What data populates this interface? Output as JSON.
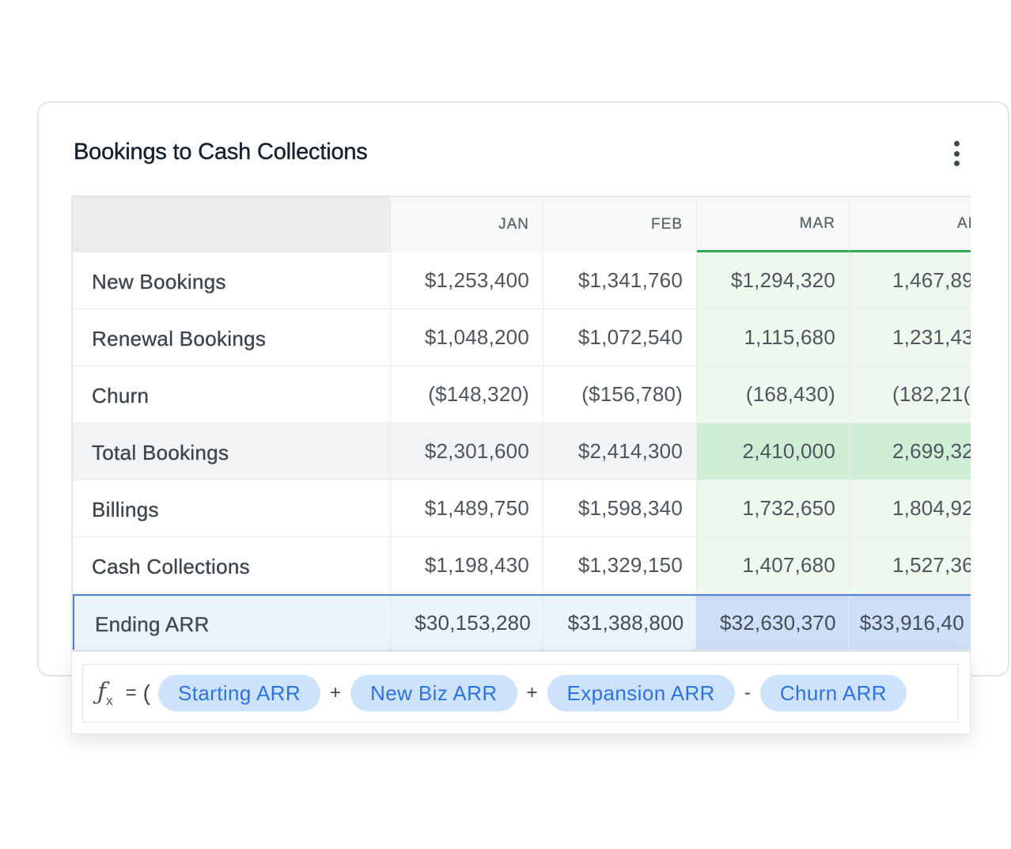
{
  "card": {
    "title": "Bookings to Cash Collections",
    "menu_icon": "kebab-vertical-icon"
  },
  "table": {
    "columns": [
      "",
      "JAN",
      "FEB",
      "MAR",
      "AI"
    ],
    "rows": [
      {
        "label": "New Bookings",
        "values": [
          "$1,253,400",
          "$1,341,760",
          "$1,294,320",
          "1,467,89"
        ]
      },
      {
        "label": "Renewal Bookings",
        "values": [
          "$1,048,200",
          "$1,072,540",
          "1,115,680",
          "1,231,43"
        ]
      },
      {
        "label": "Churn",
        "values": [
          "($148,320)",
          "($156,780)",
          "(168,430)",
          "(182,21("
        ]
      },
      {
        "label": "Total Bookings",
        "values": [
          "$2,301,600",
          "$2,414,300",
          "2,410,000",
          "2,699,32"
        ]
      },
      {
        "label": "Billings",
        "values": [
          "$1,489,750",
          "$1,598,340",
          "1,732,650",
          "1,804,92"
        ]
      },
      {
        "label": "Cash Collections",
        "values": [
          "$1,198,430",
          "$1,329,150",
          "1,407,680",
          "1,527,36"
        ]
      },
      {
        "label": "Ending ARR",
        "values": [
          "$30,153,280",
          "$31,388,800",
          "$32,630,370",
          "$33,916,40"
        ]
      }
    ]
  },
  "formula": {
    "icon": "function-fx-icon",
    "equals": "=",
    "open_paren": "(",
    "tokens": [
      {
        "label": "Starting ARR"
      },
      {
        "op": "+"
      },
      {
        "label": "New Biz ARR"
      },
      {
        "op": "+"
      },
      {
        "label": "Expansion ARR"
      },
      {
        "op": "-"
      },
      {
        "label": "Churn ARR"
      }
    ]
  },
  "colors": {
    "highlight_green": "#d3f0d9",
    "column_green_line": "#33a852",
    "selected_row_border": "#4b80d6",
    "pill_bg": "#cfe2fb",
    "pill_text": "#2c74dd"
  }
}
